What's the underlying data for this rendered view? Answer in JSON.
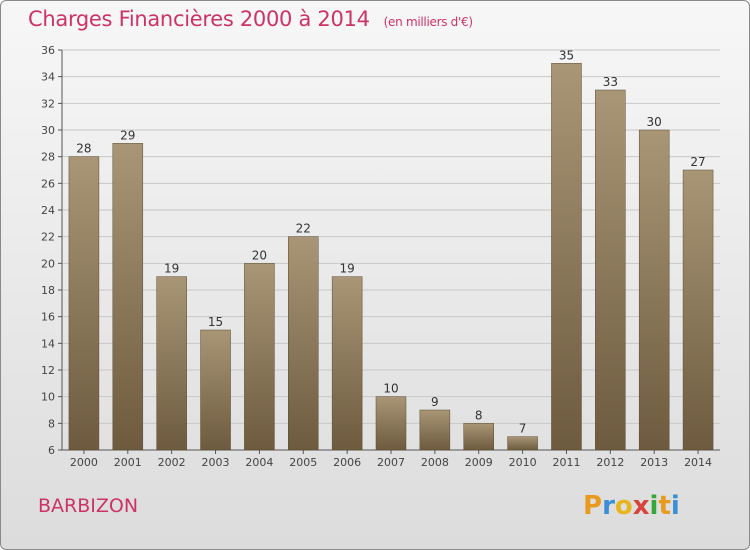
{
  "title": "Charges Financières 2000 à 2014",
  "subtitle": "(en milliers d'€)",
  "city": "BARBIZON",
  "logo": {
    "letters": [
      "P",
      "r",
      "o",
      "x",
      "i",
      "t",
      "i"
    ],
    "colors": [
      "#e89a1e",
      "#3a8fd6",
      "#e8b51e",
      "#d8433a",
      "#3aa53a",
      "#e89a1e",
      "#3a8fd6"
    ]
  },
  "colors": {
    "title": "#cc3366",
    "bar_top": "#a89676",
    "bar_bottom": "#6e5b3f",
    "grid": "#c8c8c8"
  },
  "chart_data": {
    "type": "bar",
    "categories": [
      "2000",
      "2001",
      "2002",
      "2003",
      "2004",
      "2005",
      "2006",
      "2007",
      "2008",
      "2009",
      "2010",
      "2011",
      "2012",
      "2013",
      "2014"
    ],
    "values": [
      28,
      29,
      19,
      15,
      20,
      22,
      19,
      10,
      9,
      8,
      7,
      35,
      33,
      30,
      27
    ],
    "ylim": [
      6,
      36
    ],
    "yticks": [
      6,
      8,
      10,
      12,
      14,
      16,
      18,
      20,
      22,
      24,
      26,
      28,
      30,
      32,
      34,
      36
    ],
    "grid": true,
    "xlabel": "",
    "ylabel": ""
  }
}
